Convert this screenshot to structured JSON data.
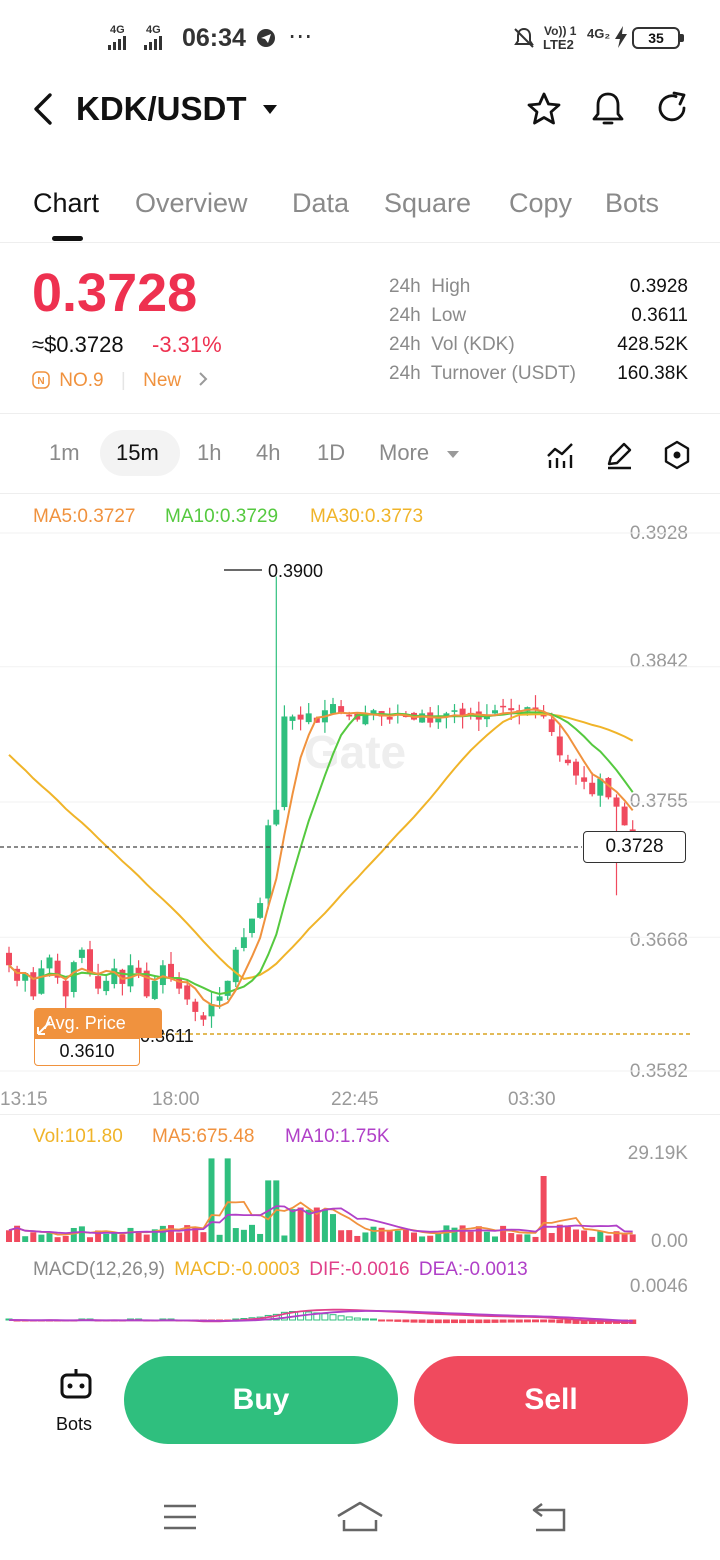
{
  "status_bar": {
    "net1": "4G",
    "net2": "4G",
    "time": "06:34",
    "volte": "Vo)) 1",
    "lte": "LTE2",
    "net3": "4G₂",
    "battery": "35"
  },
  "header": {
    "pair": "KDK/USDT",
    "icons": [
      "back-arrow-icon",
      "dropdown-caret-icon",
      "star-icon",
      "bell-icon",
      "refresh-icon"
    ]
  },
  "tabs": [
    "Chart",
    "Overview",
    "Data",
    "Square",
    "Copy",
    "Bots"
  ],
  "ticker": {
    "price": "0.3728",
    "usd_price": "≈$0.3728",
    "change": "-3.31%",
    "rank": "NO.9",
    "tag": "New",
    "stats": [
      {
        "period": "24h",
        "label": "High",
        "value": "0.3928"
      },
      {
        "period": "24h",
        "label": "Low",
        "value": "0.3611"
      },
      {
        "period": "24h",
        "label": "Vol (KDK)",
        "value": "428.52K"
      },
      {
        "period": "24h",
        "label": "Turnover (USDT)",
        "value": "160.38K"
      }
    ]
  },
  "intervals": {
    "items": [
      "1m",
      "15m",
      "1h",
      "4h",
      "1D"
    ],
    "active": "15m",
    "more": "More"
  },
  "ma_legend": {
    "ma5": "MA5:0.3727",
    "ma10": "MA10:0.3729",
    "ma30": "MA30:0.3773"
  },
  "price_axis": [
    "0.3928",
    "0.3842",
    "0.3755",
    "0.3668",
    "0.3582"
  ],
  "time_axis": [
    "13:15",
    "18:00",
    "22:45",
    "03:30"
  ],
  "annotations": {
    "high_marker": "0.3900",
    "low_marker": "0.3611",
    "current_price": "0.3728",
    "avg_price_label": "Avg. Price",
    "avg_price": "0.3610",
    "watermark": "Gate"
  },
  "volume_legend": {
    "vol": "Vol:101.80",
    "ma5": "MA5:675.48",
    "ma10": "MA10:1.75K",
    "axis_top": "29.19K",
    "axis_bottom": "0.00"
  },
  "macd_legend": {
    "title": "MACD(12,26,9)",
    "macd": "MACD:-0.0003",
    "dif": "DIF:-0.0016",
    "dea": "DEA:-0.0013",
    "axis_top": "0.0046"
  },
  "actions": {
    "bots": "Bots",
    "buy": "Buy",
    "sell": "Sell"
  },
  "colors": {
    "up": "#2fbf7e",
    "down": "#f04a5e",
    "ma5": "#f0923e",
    "ma10": "#55c93f",
    "ma30": "#f0b429",
    "ma10_vol": "#b040c8"
  },
  "chart_data": {
    "type": "candlestick",
    "interval": "15m",
    "y_axis_ticks": [
      0.3928,
      0.3842,
      0.3755,
      0.3668,
      0.3582
    ],
    "x_axis_ticks": [
      "13:15",
      "18:00",
      "22:45",
      "03:30"
    ],
    "high": 0.39,
    "low": 0.3611,
    "last": 0.3728,
    "avg_price": 0.361,
    "closes": [
      0.365,
      0.364,
      0.3645,
      0.363,
      0.3648,
      0.3655,
      0.3642,
      0.363,
      0.3652,
      0.366,
      0.3645,
      0.3635,
      0.364,
      0.3648,
      0.3638,
      0.365,
      0.3645,
      0.363,
      0.364,
      0.365,
      0.3642,
      0.3635,
      0.3628,
      0.362,
      0.3615,
      0.3625,
      0.363,
      0.364,
      0.366,
      0.3668,
      0.368,
      0.369,
      0.374,
      0.375,
      0.381,
      0.381,
      0.3808,
      0.3812,
      0.3806,
      0.3814,
      0.3818,
      0.3812,
      0.381,
      0.3808,
      0.3812,
      0.3814,
      0.381,
      0.3808,
      0.3812,
      0.381,
      0.3808,
      0.3812,
      0.3806,
      0.381,
      0.3812,
      0.3814,
      0.381,
      0.3812,
      0.3808,
      0.381,
      0.3814,
      0.3816,
      0.3814,
      0.3812,
      0.3816,
      0.3814,
      0.381,
      0.38,
      0.3785,
      0.378,
      0.3772,
      0.3768,
      0.376,
      0.377,
      0.3758,
      0.3752,
      0.374,
      0.3728
    ],
    "volume_ma_lines": [
      "MA5",
      "MA10"
    ],
    "macd": {
      "params": "12,26,9",
      "macd": -0.0003,
      "dif": -0.0016,
      "dea": -0.0013
    }
  }
}
